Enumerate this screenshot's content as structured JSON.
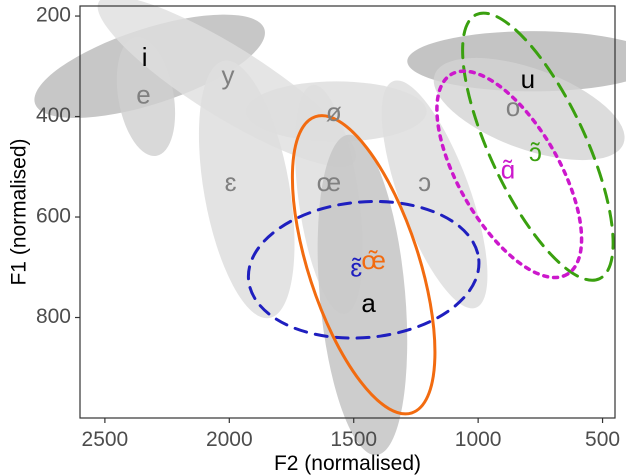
{
  "chart_data": {
    "type": "scatter",
    "xlabel": "F2 (normalised)",
    "ylabel": "F1 (normalised)",
    "x_reversed": true,
    "y_reversed": true,
    "xlim": [
      2600,
      450
    ],
    "ylim": [
      180,
      1000
    ],
    "x_ticks": [
      2500,
      2000,
      1500,
      1000,
      500
    ],
    "y_ticks": [
      200,
      400,
      600,
      800
    ],
    "grid": false,
    "ellipses": [
      {
        "vowel": "i",
        "cx": 2320,
        "cy": 300,
        "rx": 240,
        "ry": 75,
        "angle": -18,
        "fill": "#bdbdbd",
        "opacity": 0.85
      },
      {
        "vowel": "e",
        "cx": 2335,
        "cy": 360,
        "rx": 120,
        "ry": 55,
        "angle": 80,
        "fill": "#d0d0d0",
        "opacity": 0.8
      },
      {
        "vowel": "y",
        "cx": 2010,
        "cy": 330,
        "rx": 300,
        "ry": 70,
        "angle": 32,
        "fill": "#dedede",
        "opacity": 0.8
      },
      {
        "vowel": "ø",
        "cx": 1570,
        "cy": 390,
        "rx": 180,
        "ry": 60,
        "angle": 0,
        "fill": "#dedede",
        "opacity": 0.85
      },
      {
        "vowel": "ɛ",
        "cx": 1930,
        "cy": 545,
        "rx": 260,
        "ry": 85,
        "angle": 80,
        "fill": "#dedede",
        "opacity": 0.85
      },
      {
        "vowel": "œ",
        "cx": 1600,
        "cy": 565,
        "rx": 230,
        "ry": 60,
        "angle": 82,
        "fill": "#dedede",
        "opacity": 0.85
      },
      {
        "vowel": "ɔ",
        "cx": 1175,
        "cy": 555,
        "rx": 240,
        "ry": 70,
        "angle": 70,
        "fill": "#dedede",
        "opacity": 0.85
      },
      {
        "vowel": "u",
        "cx": 780,
        "cy": 290,
        "rx": 250,
        "ry": 60,
        "angle": 0,
        "fill": "#b5b5b5",
        "opacity": 0.8
      },
      {
        "vowel": "o",
        "cx": 795,
        "cy": 385,
        "rx": 200,
        "ry": 80,
        "angle": 20,
        "fill": "#d3d3d3",
        "opacity": 0.8
      },
      {
        "vowel": "a",
        "cx": 1465,
        "cy": 755,
        "rx": 320,
        "ry": 85,
        "angle": 85,
        "fill": "#c8c8c8",
        "opacity": 0.9
      }
    ],
    "outlined_ellipses": [
      {
        "vowel": "ɛ̃",
        "cx": 1460,
        "cy": 705,
        "rx": 230,
        "ry": 135,
        "angle": -5,
        "color": "#1f1fbf",
        "dash": "12,9",
        "width": 3
      },
      {
        "vowel": "œ̃",
        "cx": 1460,
        "cy": 695,
        "rx": 310,
        "ry": 110,
        "angle": 72,
        "color": "#f26b10",
        "dash": "",
        "width": 3
      },
      {
        "vowel": "ɔ̃",
        "cx": 760,
        "cy": 460,
        "rx": 290,
        "ry": 95,
        "angle": 65,
        "color": "#3aa00f",
        "dash": "14,9",
        "width": 3
      },
      {
        "vowel": "ɑ̃",
        "cx": 875,
        "cy": 515,
        "rx": 230,
        "ry": 100,
        "angle": 60,
        "color": "#cc18cc",
        "dash": "4,6",
        "width": 3.5
      }
    ],
    "labels": [
      {
        "text": "i",
        "x": 2340,
        "y": 286,
        "color": "#000000"
      },
      {
        "text": "e",
        "x": 2345,
        "y": 360,
        "color": "#808080"
      },
      {
        "text": "y",
        "x": 2005,
        "y": 322,
        "color": "#808080"
      },
      {
        "text": "ø",
        "x": 1580,
        "y": 395,
        "color": "#808080"
      },
      {
        "text": "ɛ",
        "x": 1995,
        "y": 535,
        "color": "#808080"
      },
      {
        "text": "œ",
        "x": 1600,
        "y": 535,
        "color": "#808080"
      },
      {
        "text": "ɔ",
        "x": 1215,
        "y": 535,
        "color": "#808080"
      },
      {
        "text": "u",
        "x": 800,
        "y": 330,
        "color": "#000000"
      },
      {
        "text": "o",
        "x": 860,
        "y": 385,
        "color": "#808080"
      },
      {
        "text": "ɔ̃",
        "x": 770,
        "y": 475,
        "color": "#3aa00f"
      },
      {
        "text": "ɑ̃",
        "x": 880,
        "y": 510,
        "color": "#cc18cc"
      },
      {
        "text": "œ̃",
        "x": 1420,
        "y": 690,
        "color": "#f26b10"
      },
      {
        "text": "ɛ̃",
        "x": 1490,
        "y": 705,
        "color": "#1f1fbf"
      },
      {
        "text": "a",
        "x": 1440,
        "y": 775,
        "color": "#000000"
      }
    ]
  }
}
